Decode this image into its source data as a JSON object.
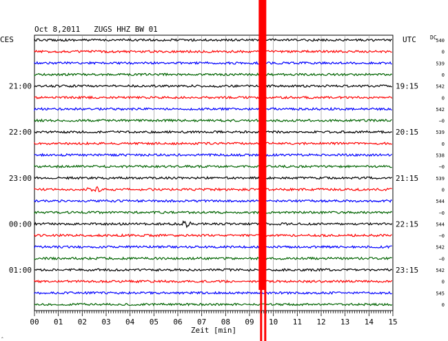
{
  "chart_data": {
    "type": "line",
    "title": "Oct 8,2011   ZUGS HHZ BW 01",
    "left_timezone": "CES",
    "right_timezone": "UTC",
    "dc_header": "DC",
    "xlabel": "Zeit [min]",
    "x_ticks": [
      "00",
      "01",
      "02",
      "03",
      "04",
      "05",
      "06",
      "07",
      "08",
      "09",
      "10",
      "11",
      "12",
      "13",
      "14",
      "15"
    ],
    "xlim": [
      0,
      15
    ],
    "trace_colors": [
      "#000000",
      "#ff0000",
      "#0000ff",
      "#006400"
    ],
    "left_time_labels": [
      {
        "trace": 4,
        "text": "21:00"
      },
      {
        "trace": 8,
        "text": "22:00"
      },
      {
        "trace": 12,
        "text": "23:00"
      },
      {
        "trace": 16,
        "text": "00:00"
      },
      {
        "trace": 20,
        "text": "01:00"
      }
    ],
    "right_time_labels": [
      {
        "trace": 4,
        "text": "19:15"
      },
      {
        "trace": 8,
        "text": "20:15"
      },
      {
        "trace": 12,
        "text": "21:15"
      },
      {
        "trace": 16,
        "text": "22:15"
      },
      {
        "trace": 20,
        "text": "23:15"
      }
    ],
    "dc_offsets": [
      "540",
      "0",
      "539",
      "0",
      "542",
      "0",
      "542",
      "−0",
      "539",
      "0",
      "538",
      "−0",
      "539",
      "0",
      "544",
      "−0",
      "544",
      "−0",
      "542",
      "−0",
      "542",
      "0",
      "545",
      "0"
    ],
    "event_minute": 9.5,
    "event_color": "#ff0000",
    "bursts": [
      {
        "trace": 13,
        "minute": 2.5
      },
      {
        "trace": 16,
        "minute": 6.3
      }
    ],
    "footer_mark": "‸"
  }
}
